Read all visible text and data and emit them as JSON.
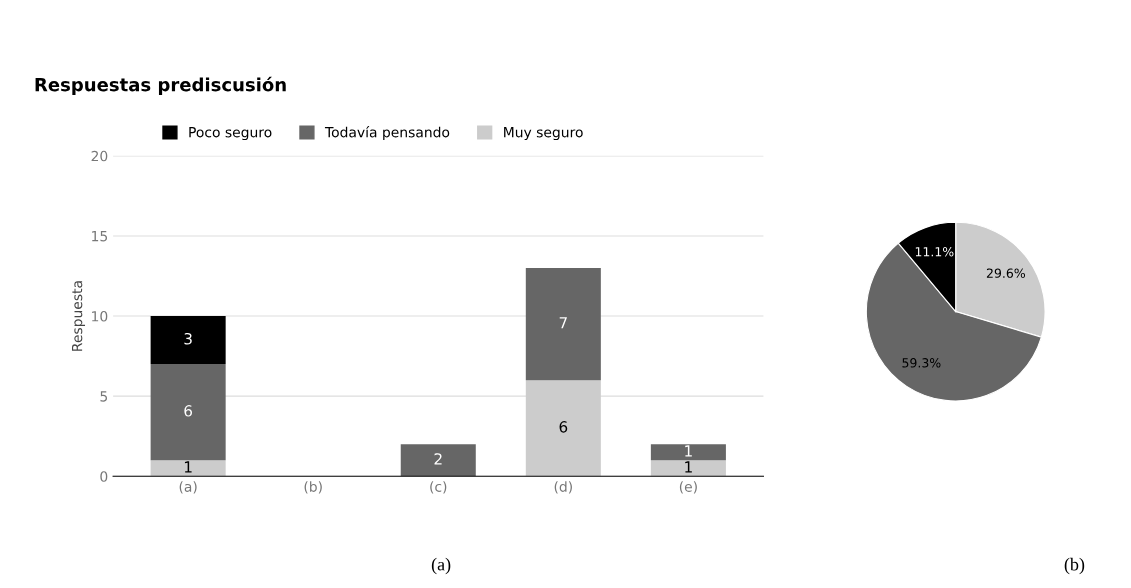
{
  "chart_data": [
    {
      "type": "bar",
      "title": "Respuestas prediscusión",
      "ylabel": "Respuesta",
      "categories": [
        "(a)",
        "(b)",
        "(c)",
        "(d)",
        "(e)"
      ],
      "stacked": true,
      "series": [
        {
          "name": "Muy seguro",
          "color": "#cccccc",
          "values": [
            1,
            0,
            0,
            6,
            1
          ],
          "value_labels": [
            "1",
            null,
            null,
            "6",
            "1"
          ]
        },
        {
          "name": "Todavía pensando",
          "color": "#666666",
          "values": [
            6,
            0,
            2,
            7,
            1
          ],
          "value_labels": [
            "6",
            null,
            "2",
            "7",
            "1"
          ]
        },
        {
          "name": "Poco seguro",
          "color": "#000000",
          "values": [
            3,
            0,
            0,
            0,
            0
          ],
          "value_labels": [
            "3",
            null,
            null,
            null,
            null
          ]
        }
      ],
      "ylim": [
        0,
        20
      ],
      "yticks": [
        0,
        5,
        10,
        15,
        20
      ],
      "grid": "y",
      "legend": "top",
      "annotations": [
        "(a)"
      ]
    },
    {
      "type": "pie",
      "categories": [
        null,
        null,
        null
      ],
      "values": [
        29.6,
        59.3,
        11.1
      ],
      "colors": [
        "#cccccc",
        "#666666",
        "#000000"
      ],
      "value_labels": [
        "29.6%",
        "59.3%",
        "11.1%"
      ],
      "annotations": [
        "(b)"
      ]
    }
  ]
}
